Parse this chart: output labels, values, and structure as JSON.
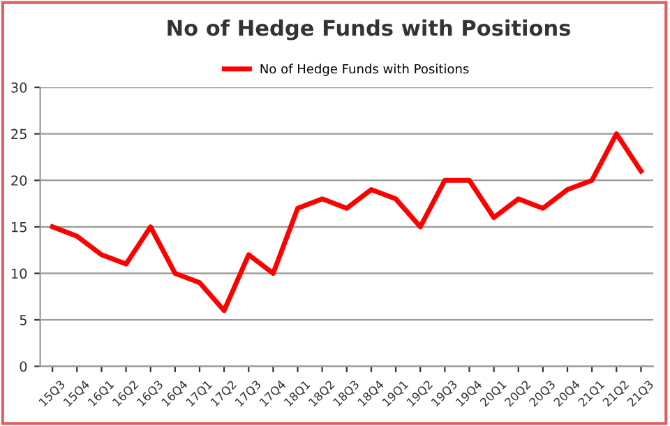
{
  "chart_data": {
    "type": "line",
    "title": "No of Hedge Funds with Positions",
    "categories": [
      "15Q3",
      "15Q4",
      "16Q1",
      "16Q2",
      "16Q3",
      "16Q4",
      "17Q1",
      "17Q2",
      "17Q3",
      "17Q4",
      "18Q1",
      "18Q2",
      "18Q3",
      "18Q4",
      "19Q1",
      "19Q2",
      "19Q3",
      "19Q4",
      "20Q1",
      "20Q2",
      "20Q3",
      "20Q4",
      "21Q1",
      "21Q2",
      "21Q3"
    ],
    "series": [
      {
        "name": "No of Hedge Funds with Positions",
        "color": "#ff0000",
        "values": [
          15,
          14,
          12,
          11,
          15,
          10,
          9,
          6,
          12,
          10,
          17,
          18,
          17,
          19,
          18,
          15,
          20,
          20,
          16,
          18,
          17,
          19,
          20,
          25,
          21
        ]
      }
    ],
    "ylim": [
      0,
      30
    ],
    "yticks": [
      0,
      5,
      10,
      15,
      20,
      25,
      30
    ],
    "grid": "y",
    "legend": "top",
    "marker": "none",
    "line_style": "solid"
  }
}
